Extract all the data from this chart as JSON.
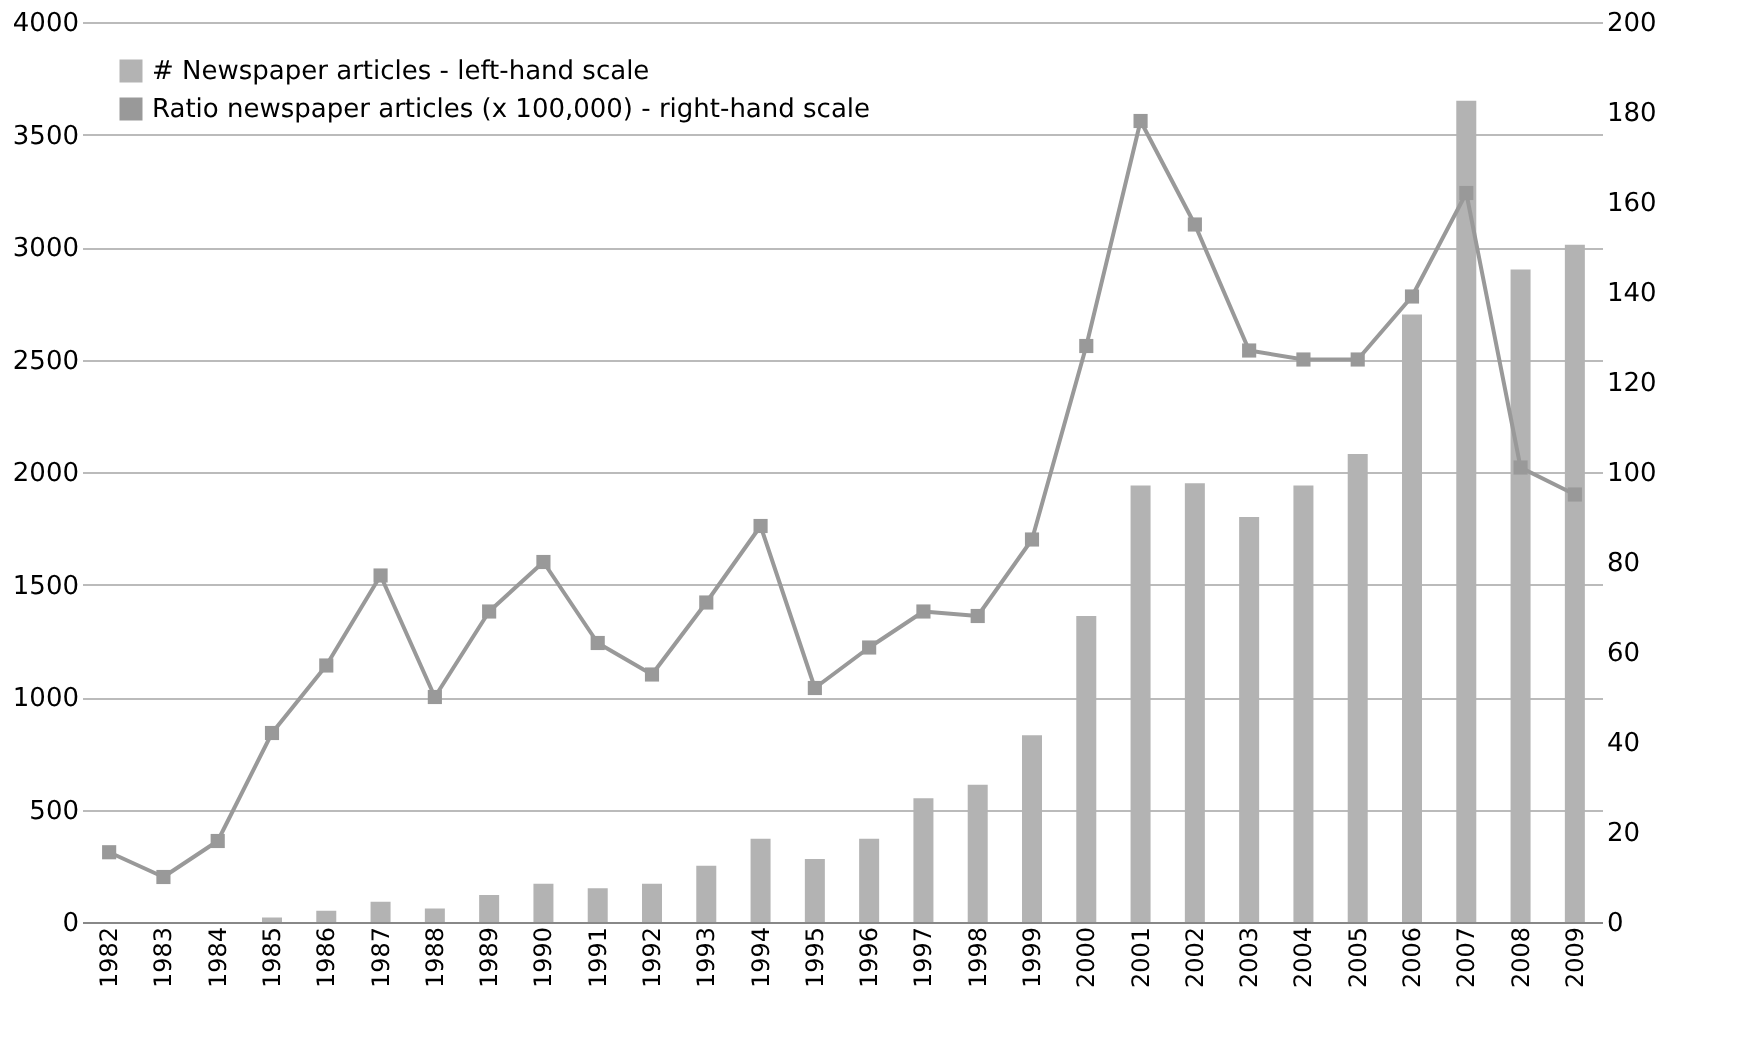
{
  "chart_data": {
    "type": "bar",
    "categories": [
      "1982",
      "1983",
      "1984",
      "1985",
      "1986",
      "1987",
      "1988",
      "1989",
      "1990",
      "1991",
      "1992",
      "1993",
      "1994",
      "1995",
      "1996",
      "1997",
      "1998",
      "1999",
      "2000",
      "2001",
      "2002",
      "2003",
      "2004",
      "2005",
      "2006",
      "2007",
      "2008",
      "2009"
    ],
    "series": [
      {
        "name": "# Newspaper articles - left-hand scale",
        "color": "#b3b3b3",
        "values": [
          0,
          0,
          0,
          20,
          50,
          90,
          60,
          120,
          170,
          150,
          170,
          250,
          370,
          280,
          370,
          550,
          610,
          830,
          1360,
          1940,
          1950,
          1800,
          1940,
          2080,
          2700,
          3650,
          2900,
          3010
        ]
      },
      {
        "name": "Ratio newspaper articles (x 100,000) - right-hand scale",
        "type": "line",
        "axis": "y2",
        "color": "#999999",
        "marker": "square",
        "values": [
          15.5,
          10,
          18,
          42,
          57,
          77,
          50,
          69,
          80,
          62,
          55,
          71,
          88,
          52,
          61,
          69,
          68,
          85,
          128,
          178,
          155,
          127,
          125,
          125,
          139,
          162,
          101,
          95
        ]
      }
    ],
    "ylim": [
      0,
      4000
    ],
    "yticks": [
      0,
      500,
      1000,
      1500,
      2000,
      2500,
      3000,
      3500,
      4000
    ],
    "y2lim": [
      0,
      200
    ],
    "y2ticks": [
      0,
      20,
      40,
      60,
      80,
      100,
      120,
      140,
      160,
      180,
      200
    ],
    "grid": "y",
    "legend": "top left"
  }
}
